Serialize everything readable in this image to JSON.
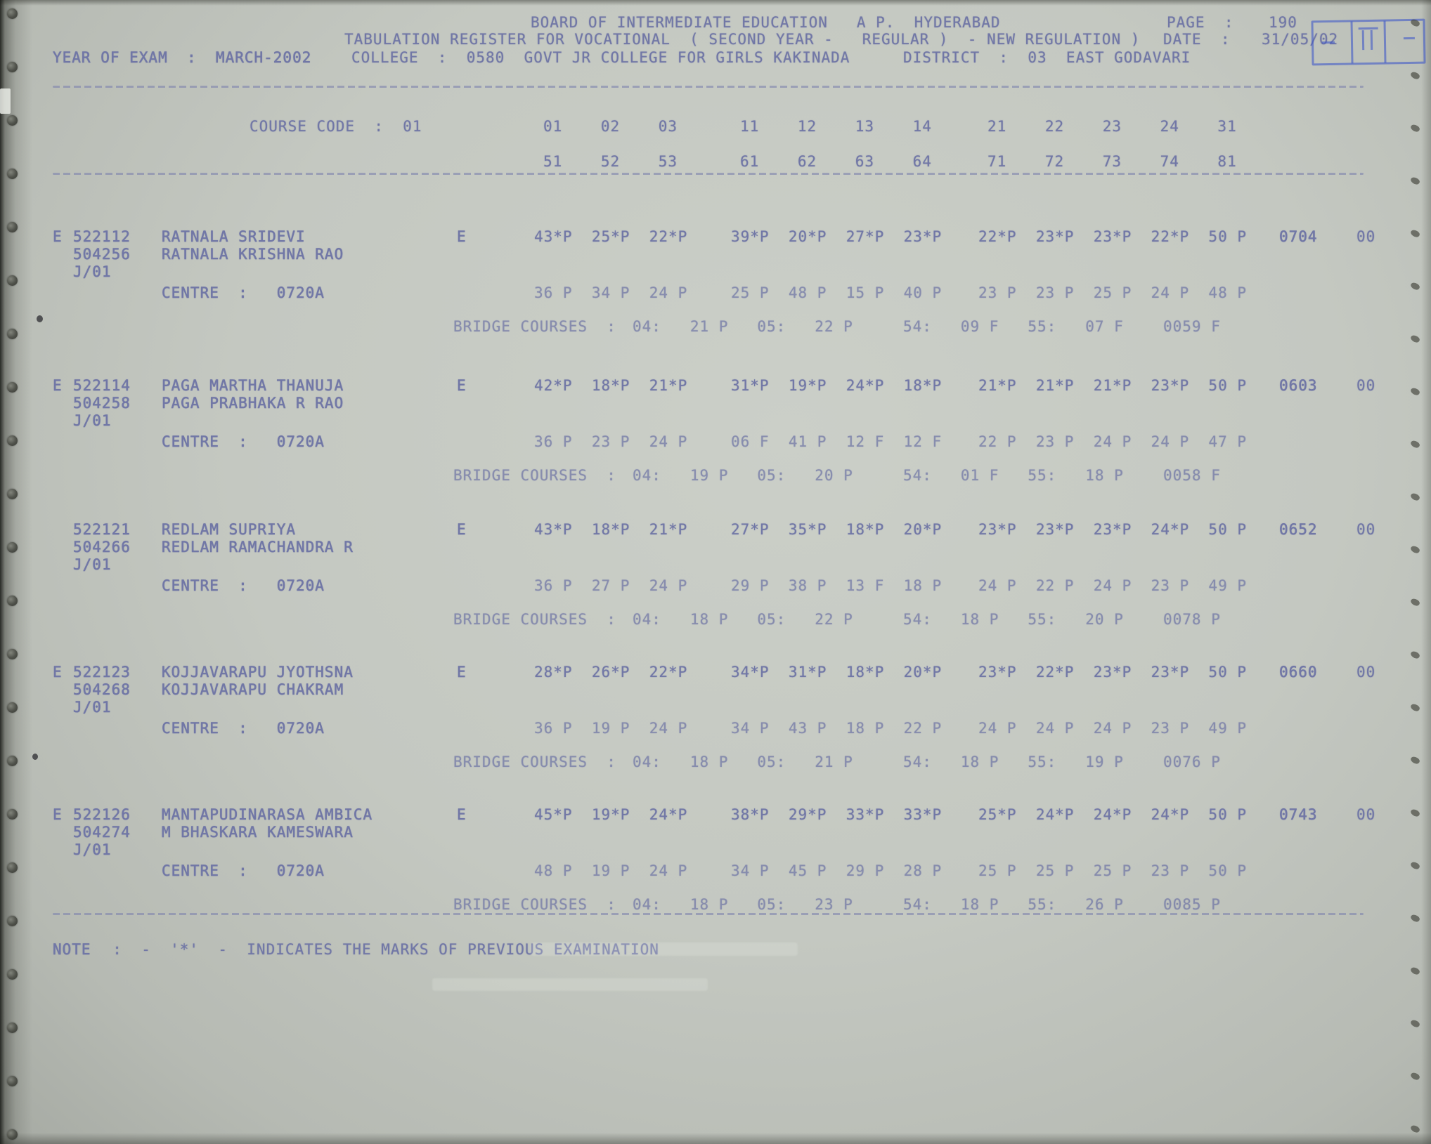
{
  "colors": {
    "ink": "#7177a6",
    "paper": "#c4c8c1",
    "stamp_blue": "#4058c8",
    "scan_background": "#4e5148"
  },
  "header": {
    "board_line": "BOARD OF INTERMEDIATE EDUCATION   A P.  HYDERABAD",
    "page_label": "PAGE  :",
    "page_value": "190",
    "register_line": "TABULATION REGISTER FOR VOCATIONAL  ( SECOND YEAR -   REGULAR )  - NEW REGULATION )",
    "date_label": "DATE  :",
    "date_value": "31/05/02",
    "year_of_exam_line": "YEAR OF EXAM  :  MARCH-2002",
    "college_line": "COLLEGE  :  0580  GOVT JR COLLEGE FOR GIRLS KAKINADA",
    "district_line": "DISTRICT  :  03  EAST GODAVARI"
  },
  "course": {
    "label": "COURSE CODE  :  01",
    "row1_g1": "01    02    03",
    "row1_g2": "11    12    13    14",
    "row1_g3": "21    22    23    24    31",
    "row2_g1": "51    52    53",
    "row2_g2": "61    62    63    64",
    "row2_g3": "71    72    73    74    81"
  },
  "labels": {
    "bridge_courses": "BRIDGE COURSES  :"
  },
  "students": [
    {
      "flag": "E",
      "regno": "522112",
      "name": "RATNALA SRIDEVI",
      "regno2": "504256",
      "guardian": "RATNALA KRISHNA RAO",
      "batch": "J/01",
      "centre_line": "CENTRE  :   0720A",
      "medium": "E",
      "m1a": "43*P  25*P  22*P",
      "m1b": "39*P  20*P  27*P  23*P",
      "m1c": "22*P  23*P  23*P  22*P  50 P",
      "total": "0704",
      "spare": "00",
      "m2a": "36 P  34 P  24 P",
      "m2b": "25 P  48 P  15 P  40 P",
      "m2c": "23 P  23 P  25 P  24 P  48 P",
      "b1": "04:   21 P   05:   22 P",
      "b2": "54:   09 F   55:   07 F",
      "btotal": "0059 F"
    },
    {
      "flag": "E",
      "regno": "522114",
      "name": "PAGA MARTHA THANUJA",
      "regno2": "504258",
      "guardian": "PAGA PRABHAKA R RAO",
      "batch": "J/01",
      "centre_line": "CENTRE  :   0720A",
      "medium": "E",
      "m1a": "42*P  18*P  21*P",
      "m1b": "31*P  19*P  24*P  18*P",
      "m1c": "21*P  21*P  21*P  23*P  50 P",
      "total": "0603",
      "spare": "00",
      "m2a": "36 P  23 P  24 P",
      "m2b": "06 F  41 P  12 F  12 F",
      "m2c": "22 P  23 P  24 P  24 P  47 P",
      "b1": "04:   19 P   05:   20 P",
      "b2": "54:   01 F   55:   18 P",
      "btotal": "0058 F"
    },
    {
      "flag": "",
      "regno": "522121",
      "name": "REDLAM SUPRIYA",
      "regno2": "504266",
      "guardian": "REDLAM RAMACHANDRA R",
      "batch": "J/01",
      "centre_line": "CENTRE  :   0720A",
      "medium": "E",
      "m1a": "43*P  18*P  21*P",
      "m1b": "27*P  35*P  18*P  20*P",
      "m1c": "23*P  23*P  23*P  24*P  50 P",
      "total": "0652",
      "spare": "00",
      "m2a": "36 P  27 P  24 P",
      "m2b": "29 P  38 P  13 F  18 P",
      "m2c": "24 P  22 P  24 P  23 P  49 P",
      "b1": "04:   18 P   05:   22 P",
      "b2": "54:   18 P   55:   20 P",
      "btotal": "0078 P"
    },
    {
      "flag": "E",
      "regno": "522123",
      "name": "KOJJAVARAPU JYOTHSNA",
      "regno2": "504268",
      "guardian": "KOJJAVARAPU CHAKRAM",
      "batch": "J/01",
      "centre_line": "CENTRE  :   0720A",
      "medium": "E",
      "m1a": "28*P  26*P  22*P",
      "m1b": "34*P  31*P  18*P  20*P",
      "m1c": "23*P  22*P  23*P  23*P  50 P",
      "total": "0660",
      "spare": "00",
      "m2a": "36 P  19 P  24 P",
      "m2b": "34 P  43 P  18 P  22 P",
      "m2c": "24 P  24 P  24 P  23 P  49 P",
      "b1": "04:   18 P   05:   21 P",
      "b2": "54:   18 P   55:   19 P",
      "btotal": "0076 P"
    },
    {
      "flag": "E",
      "regno": "522126",
      "name": "MANTAPUDINARASA AMBICA",
      "regno2": "504274",
      "guardian": "M BHASKARA KAMESWARA",
      "batch": "J/01",
      "centre_line": "CENTRE  :   0720A",
      "medium": "E",
      "m1a": "45*P  19*P  24*P",
      "m1b": "38*P  29*P  33*P  33*P",
      "m1c": "25*P  24*P  24*P  24*P  50 P",
      "total": "0743",
      "spare": "00",
      "m2a": "48 P  19 P  24 P",
      "m2b": "34 P  45 P  29 P  28 P",
      "m2c": "25 P  25 P  25 P  23 P  50 P",
      "b1": "04:   18 P   05:   23 P",
      "b2": "54:   18 P   55:   26 P",
      "btotal": "0085 P"
    }
  ],
  "note": {
    "label": "NOTE",
    "text": "  :  -  '*'  -  INDICATES THE MARKS OF PREVIOUS EXAMINATION"
  }
}
